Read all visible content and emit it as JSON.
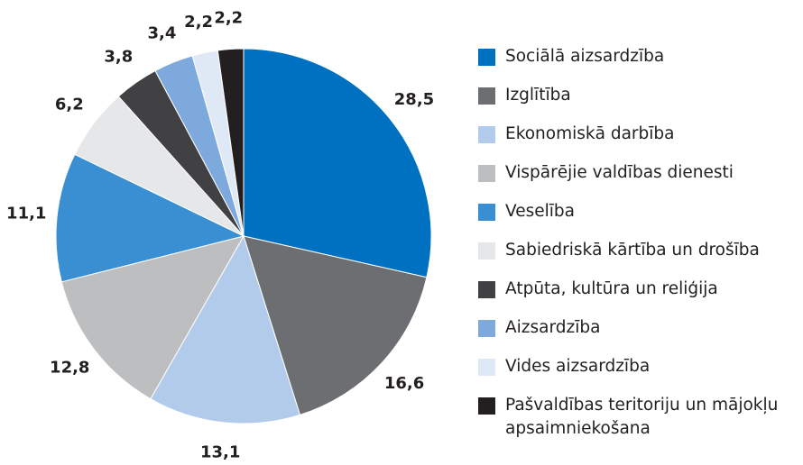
{
  "chart_data": {
    "type": "pie",
    "categories": [
      "Sociālā aizsardzība",
      "Izglītība",
      "Ekonomiskā darbība",
      "Vispārējie valdības dienesti",
      "Veselība",
      "Sabiedriskā kārtība un drošība",
      "Atpūta, kultūra un reliģija",
      "Aizsardzība",
      "Vides aizsardzība",
      "Pašvaldības teritoriju un mājokļu apsaimniekošana"
    ],
    "values": [
      28.5,
      16.6,
      13.1,
      12.8,
      11.1,
      6.2,
      3.8,
      3.4,
      2.2,
      2.2
    ],
    "value_labels": [
      "28,5",
      "16,6",
      "13,1",
      "12,8",
      "11,1",
      "6,2",
      "3,8",
      "3,4",
      "2,2",
      "2,2"
    ],
    "colors": [
      "#0070c0",
      "#6d6e71",
      "#b3cbea",
      "#bcbec0",
      "#3a8fd3",
      "#e6e7e8",
      "#414042",
      "#7ea9dd",
      "#dfe9f6",
      "#231f20"
    ],
    "legend": "right"
  }
}
